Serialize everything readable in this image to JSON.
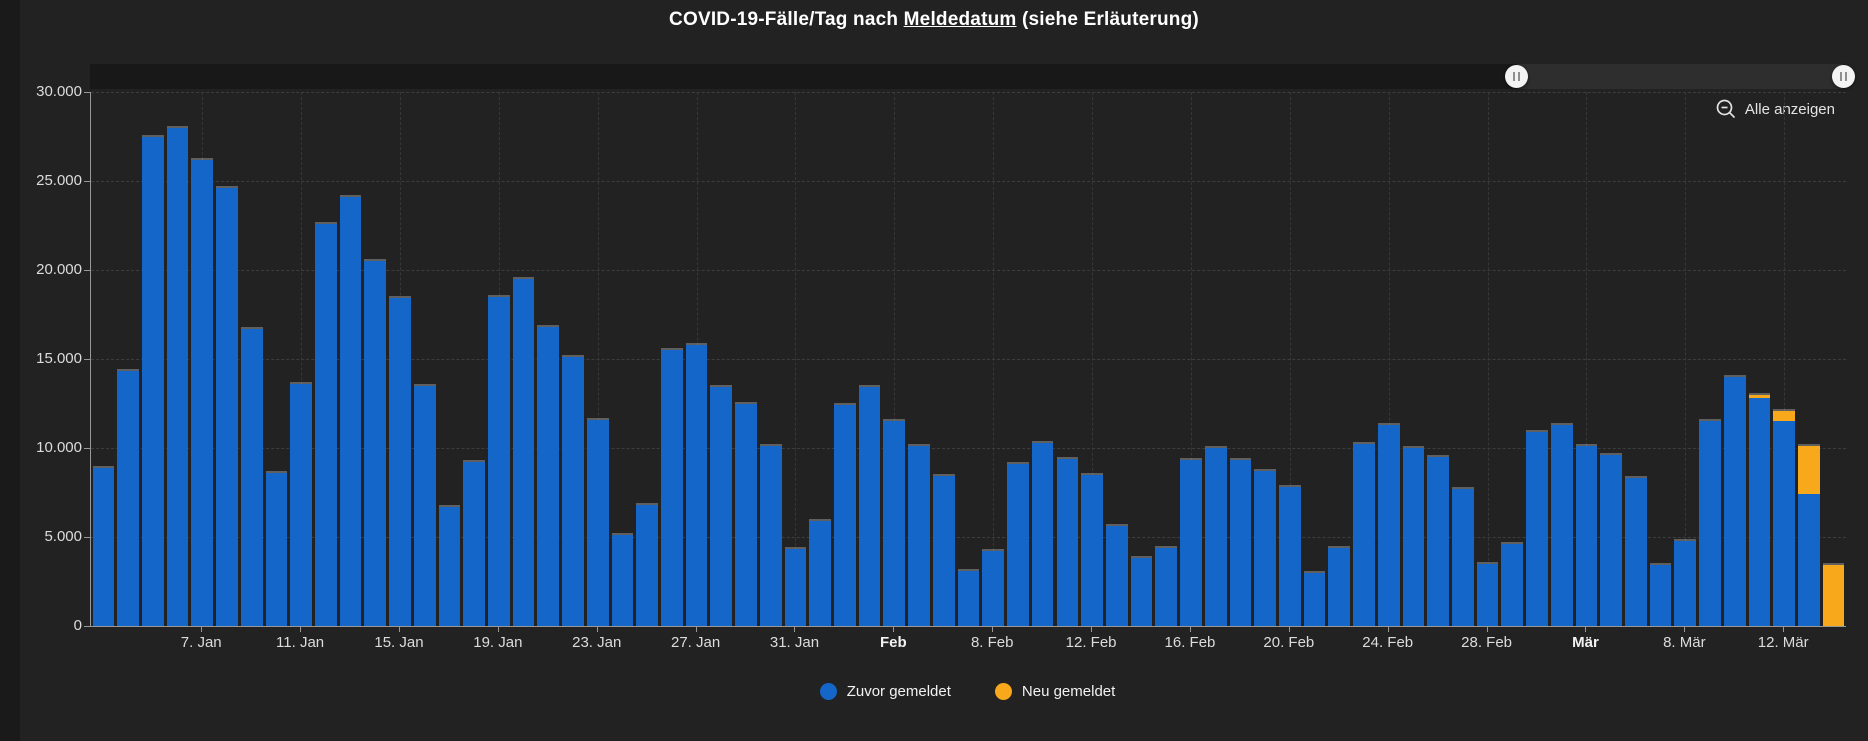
{
  "title": {
    "prefix": "COVID-19-Fälle/Tag nach ",
    "link": "Meldedatum",
    "suffix": " (siehe Erläuterung)"
  },
  "toolbar": {
    "show_all_label": "Alle anzeigen"
  },
  "slider": {
    "window": [
      0.813,
      0.999
    ]
  },
  "legend": [
    {
      "label": "Zuvor gemeldet",
      "color": "#1466c8"
    },
    {
      "label": "Neu gemeldet",
      "color": "#f8a81b"
    }
  ],
  "colors": {
    "background": "#222222",
    "bar_blue": "#1466c8",
    "bar_orange": "#f8a81b",
    "grid": "#3d3d3d",
    "axis": "#989898",
    "text": "#dcdcdc"
  },
  "chart_data": {
    "type": "bar",
    "stacked": true,
    "title": "COVID-19-Fälle/Tag nach Meldedatum (siehe Erläuterung)",
    "ylim": [
      0,
      30000
    ],
    "grid": true,
    "legend_position": "bottom",
    "y_ticks": [
      {
        "value": 0,
        "label": "0"
      },
      {
        "value": 5000,
        "label": "5.000"
      },
      {
        "value": 10000,
        "label": "10.000"
      },
      {
        "value": 15000,
        "label": "15.000"
      },
      {
        "value": 20000,
        "label": "20.000"
      },
      {
        "value": 25000,
        "label": "25.000"
      },
      {
        "value": 30000,
        "label": "30.000"
      }
    ],
    "x_ticks": [
      {
        "index": 4,
        "label": "7. Jan",
        "bold": false
      },
      {
        "index": 8,
        "label": "11. Jan",
        "bold": false
      },
      {
        "index": 12,
        "label": "15. Jan",
        "bold": false
      },
      {
        "index": 16,
        "label": "19. Jan",
        "bold": false
      },
      {
        "index": 20,
        "label": "23. Jan",
        "bold": false
      },
      {
        "index": 24,
        "label": "27. Jan",
        "bold": false
      },
      {
        "index": 28,
        "label": "31. Jan",
        "bold": false
      },
      {
        "index": 32,
        "label": "Feb",
        "bold": true
      },
      {
        "index": 36,
        "label": "8. Feb",
        "bold": false
      },
      {
        "index": 40,
        "label": "12. Feb",
        "bold": false
      },
      {
        "index": 44,
        "label": "16. Feb",
        "bold": false
      },
      {
        "index": 48,
        "label": "20. Feb",
        "bold": false
      },
      {
        "index": 52,
        "label": "24. Feb",
        "bold": false
      },
      {
        "index": 56,
        "label": "28. Feb",
        "bold": false
      },
      {
        "index": 60,
        "label": "Mär",
        "bold": true
      },
      {
        "index": 64,
        "label": "8. Mär",
        "bold": false
      },
      {
        "index": 68,
        "label": "12. Mär",
        "bold": false
      }
    ],
    "categories": [
      "3. Jan",
      "4. Jan",
      "5. Jan",
      "6. Jan",
      "7. Jan",
      "8. Jan",
      "9. Jan",
      "10. Jan",
      "11. Jan",
      "12. Jan",
      "13. Jan",
      "14. Jan",
      "15. Jan",
      "16. Jan",
      "17. Jan",
      "18. Jan",
      "19. Jan",
      "20. Jan",
      "21. Jan",
      "22. Jan",
      "23. Jan",
      "24. Jan",
      "25. Jan",
      "26. Jan",
      "27. Jan",
      "28. Jan",
      "29. Jan",
      "30. Jan",
      "31. Jan",
      "1. Feb",
      "2. Feb",
      "3. Feb",
      "4. Feb",
      "5. Feb",
      "6. Feb",
      "7. Feb",
      "8. Feb",
      "9. Feb",
      "10. Feb",
      "11. Feb",
      "12. Feb",
      "13. Feb",
      "14. Feb",
      "15. Feb",
      "16. Feb",
      "17. Feb",
      "18. Feb",
      "19. Feb",
      "20. Feb",
      "21. Feb",
      "22. Feb",
      "23. Feb",
      "24. Feb",
      "25. Feb",
      "26. Feb",
      "27. Feb",
      "28. Feb",
      "1. Mär",
      "2. Mär",
      "3. Mär",
      "4. Mär",
      "5. Mär",
      "6. Mär",
      "7. Mär",
      "8. Mär",
      "9. Mär",
      "10. Mär",
      "11. Mär",
      "12. Mär",
      "13. Mär",
      "14. Mär"
    ],
    "series": [
      {
        "name": "Zuvor gemeldet",
        "color": "#1466c8",
        "values": [
          8900,
          14300,
          27500,
          28000,
          26200,
          24600,
          16700,
          8600,
          13600,
          22600,
          24100,
          20500,
          18400,
          13500,
          6700,
          9200,
          18500,
          19500,
          16800,
          15100,
          11600,
          5100,
          6800,
          15500,
          15800,
          13400,
          12500,
          10100,
          4300,
          5900,
          12400,
          13400,
          11500,
          10100,
          8400,
          3100,
          4200,
          9100,
          10300,
          9400,
          8500,
          5600,
          3800,
          4400,
          9300,
          10000,
          9300,
          8700,
          7800,
          3000,
          4400,
          10200,
          11300,
          10000,
          9500,
          7700,
          3500,
          4600,
          10900,
          11300,
          10100,
          9600,
          8300,
          3400,
          4800,
          11500,
          14000,
          12800,
          11500,
          7400,
          0
        ]
      },
      {
        "name": "Neu gemeldet",
        "color": "#f8a81b",
        "values": [
          0,
          0,
          0,
          0,
          0,
          0,
          0,
          0,
          0,
          0,
          0,
          0,
          0,
          0,
          0,
          0,
          0,
          0,
          0,
          0,
          0,
          0,
          0,
          0,
          0,
          0,
          0,
          0,
          0,
          0,
          0,
          0,
          0,
          0,
          0,
          0,
          0,
          0,
          0,
          0,
          0,
          0,
          0,
          0,
          0,
          0,
          0,
          0,
          0,
          0,
          0,
          0,
          0,
          0,
          0,
          0,
          0,
          0,
          0,
          0,
          0,
          0,
          0,
          0,
          0,
          0,
          0,
          200,
          600,
          2700,
          3400
        ]
      }
    ]
  }
}
